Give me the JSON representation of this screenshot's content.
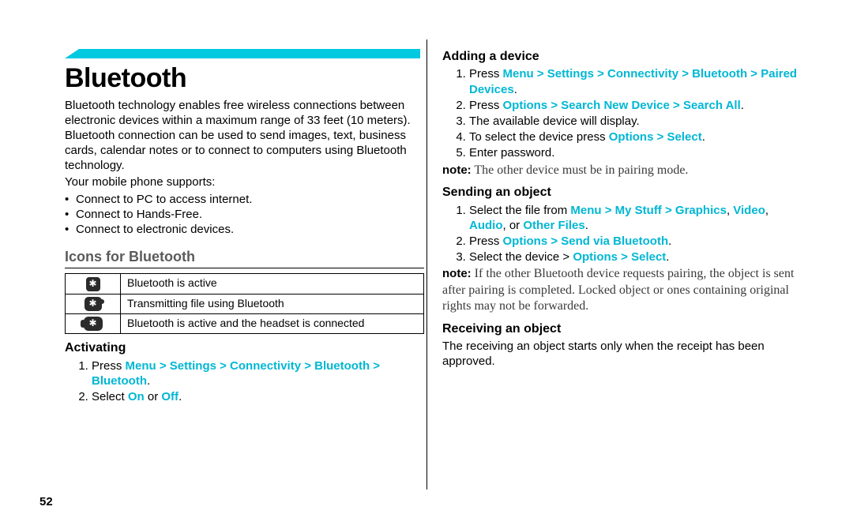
{
  "page": {
    "number": "52",
    "accent_color": "#00c9e0",
    "highlight_color": "#00b7d4",
    "section_color": "#5b5b5b",
    "note_color": "#3a3a3a",
    "background": "#ffffff"
  },
  "title": "Bluetooth",
  "intro": "Bluetooth technology enables free wireless connections between electronic devices within a maximum range of 33 feet (10 meters). Bluetooth connection can be used to send images, text, business cards, calendar notes or to connect to computers using Bluetooth technology.",
  "supports_lead": "Your mobile phone supports:",
  "supports": [
    "Connect to PC to access internet.",
    "Connect to Hands-Free.",
    "Connect to electronic devices."
  ],
  "icons_heading": "Icons for Bluetooth",
  "icon_rows": [
    {
      "icon": "bt",
      "label": "Bluetooth is active"
    },
    {
      "icon": "tx",
      "label": "Transmitting file using Bluetooth"
    },
    {
      "icon": "hs",
      "label": "Bluetooth is active and the headset is connected"
    }
  ],
  "activating": {
    "heading": "Activating",
    "s1_pre": "Press ",
    "s1_nav": "Menu > Settings > Connectivity > Bluetooth > Bluetooth",
    "s1_post": ".",
    "s2_pre": "Select ",
    "s2_on": "On",
    "s2_or": " or ",
    "s2_off": "Off",
    "s2_post": "."
  },
  "adding": {
    "heading": "Adding a device",
    "s1_pre": "Press ",
    "s1_nav": "Menu > Settings > Connectivity > Bluetooth > Paired Devices",
    "s1_post": ".",
    "s2_pre": "Press ",
    "s2_nav": "Options > Search New Device > Search All",
    "s2_post": ".",
    "s3": "The available device will display.",
    "s4_pre": "To select the device press ",
    "s4_nav": "Options > Select",
    "s4_post": ".",
    "s5": "Enter password.",
    "note_lead": "note:",
    "note_body": " The other device must be in pairing mode."
  },
  "sending": {
    "heading": "Sending an object",
    "s1_pre": "Select the file from ",
    "s1_nav1": "Menu > My Stuff > Graphics",
    "s1_sep1": ", ",
    "s1_nav2": "Video",
    "s1_sep2": ", ",
    "s1_nav3": "Audio",
    "s1_or": ", or ",
    "s1_nav4": "Other Files",
    "s1_post": ".",
    "s2_pre": "Press ",
    "s2_nav": "Options > Send via Bluetooth",
    "s2_post": ".",
    "s3_pre": "Select the device > ",
    "s3_nav": "Options > Select",
    "s3_post": ".",
    "note_lead": "note:",
    "note_body": " If the other Bluetooth device requests pairing, the object is sent after pairing is completed. Locked object or ones containing original rights may not be forwarded."
  },
  "receiving": {
    "heading": "Receiving an object",
    "body": "The receiving an object starts only when the receipt has been approved."
  }
}
